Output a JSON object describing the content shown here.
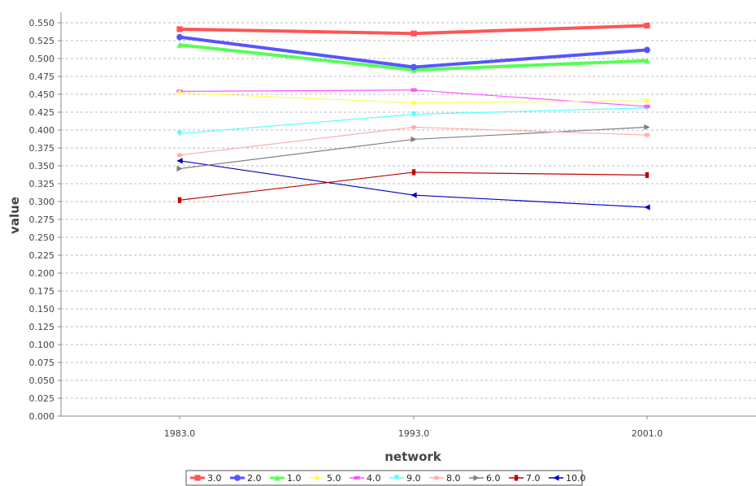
{
  "chart_data": {
    "type": "line",
    "xlabel": "network",
    "ylabel": "value",
    "categories": [
      "1983.0",
      "1993.0",
      "2001.0"
    ],
    "ylim": [
      0,
      0.5625
    ],
    "yticks": [
      "0.000",
      "0.025",
      "0.050",
      "0.075",
      "0.100",
      "0.125",
      "0.150",
      "0.175",
      "0.200",
      "0.225",
      "0.250",
      "0.275",
      "0.300",
      "0.325",
      "0.350",
      "0.375",
      "0.400",
      "0.425",
      "0.450",
      "0.475",
      "0.500",
      "0.525",
      "0.550"
    ],
    "grid": true,
    "legend_position": "bottom",
    "series": [
      {
        "name": "3.0",
        "values": [
          0.541,
          0.535,
          0.546
        ],
        "color": "#ff5555",
        "marker": "square",
        "bold": true
      },
      {
        "name": "2.0",
        "values": [
          0.53,
          0.488,
          0.512
        ],
        "color": "#5555ff",
        "marker": "circle",
        "bold": true
      },
      {
        "name": "1.0",
        "values": [
          0.519,
          0.484,
          0.497
        ],
        "color": "#55ff55",
        "marker": "triangle-up",
        "bold": true
      },
      {
        "name": "5.0",
        "values": [
          0.452,
          0.438,
          0.441
        ],
        "color": "#ffff55",
        "marker": "diamond",
        "bold": false
      },
      {
        "name": "4.0",
        "values": [
          0.454,
          0.456,
          0.433
        ],
        "color": "#ff55ff",
        "marker": "rect-h",
        "bold": false
      },
      {
        "name": "9.0",
        "values": [
          0.395,
          0.422,
          0.431
        ],
        "color": "#55ffff",
        "marker": "triangle-down",
        "bold": false
      },
      {
        "name": "8.0",
        "values": [
          0.365,
          0.404,
          0.393
        ],
        "color": "#ffafaf",
        "marker": "ellipse",
        "bold": false
      },
      {
        "name": "6.0",
        "values": [
          0.346,
          0.387,
          0.404
        ],
        "color": "#808080",
        "marker": "triangle-right",
        "bold": false
      },
      {
        "name": "7.0",
        "values": [
          0.302,
          0.341,
          0.337
        ],
        "color": "#c00000",
        "marker": "rect-v",
        "bold": false
      },
      {
        "name": "10.0",
        "values": [
          0.357,
          0.309,
          0.292
        ],
        "color": "#0000c0",
        "marker": "triangle-left",
        "bold": false
      }
    ]
  }
}
